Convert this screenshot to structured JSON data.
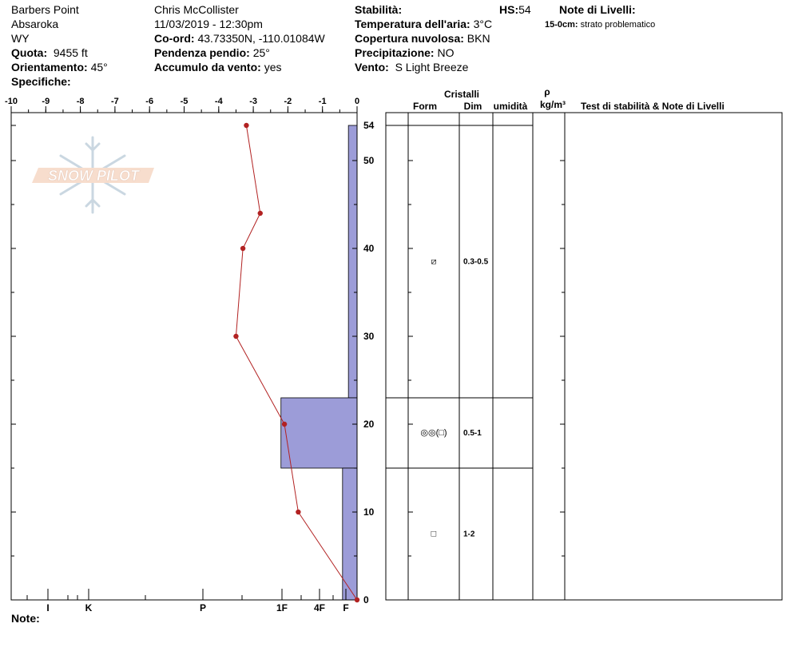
{
  "header": {
    "col1": {
      "location": "Barbers Point",
      "range": "Absaroka",
      "state": "WY",
      "elevation_label": "Quota:",
      "elevation": "9455 ft",
      "aspect_label": "Orientamento:",
      "aspect": "45°",
      "specifics_label": "Specifiche:"
    },
    "col2": {
      "observer": "Chris McCollister",
      "datetime": "11/03/2019 - 12:30pm",
      "coord_label": "Co-ord:",
      "coord": "43.73350N, -110.01084W",
      "slope_label": "Pendenza pendio:",
      "slope": "25°",
      "wind_loading_label": "Accumulo da vento:",
      "wind_loading": "yes"
    },
    "col3": {
      "stability_label": "Stabilità:",
      "hs_label": "HS:",
      "hs": "54",
      "air_temp_label": "Temperatura dell'aria:",
      "air_temp": "3°C",
      "cloud_label": "Copertura nuvolosa:",
      "cloud": "BKN",
      "precip_label": "Precipitazione:",
      "precip": "NO",
      "wind_label": "Vento:",
      "wind": "S Light Breeze"
    },
    "col4": {
      "layer_notes_label": "Note di Livelli:",
      "layer_note_range": "15-0cm:",
      "layer_note_text": "strato problematico"
    }
  },
  "footer": {
    "notes_label": "Note:"
  },
  "logo": {
    "text": "SNOW PILOT"
  },
  "table": {
    "crystals_header": "Cristalli",
    "form_header": "Form",
    "size_header": "Dim",
    "moisture_header": "umidità",
    "density_symbol": "ρ",
    "density_unit": "kg/m³",
    "notes_header": "Test di stabilità & Note di Livelli"
  },
  "colors": {
    "hardness_fill": "#9c9cd8",
    "temp_line": "#b22222"
  },
  "chart_data": {
    "type": "line",
    "temperature_axis": {
      "label": "",
      "range": [
        -10,
        0
      ],
      "ticks": [
        "-10",
        "-9",
        "-8",
        "-7",
        "-6",
        "-5",
        "-4",
        "-3",
        "-2",
        "-1",
        "0"
      ]
    },
    "depth_axis": {
      "range": [
        0,
        54
      ],
      "ticks": [
        "0",
        "10",
        "20",
        "30",
        "40",
        "50",
        "54"
      ]
    },
    "hardness_axis": {
      "ticks": [
        "I",
        "K",
        "P",
        "1F",
        "4F",
        "F"
      ]
    },
    "temperature_profile": [
      {
        "depth": 54,
        "temp": -3.2
      },
      {
        "depth": 44,
        "temp": -2.8
      },
      {
        "depth": 40,
        "temp": -3.3
      },
      {
        "depth": 30,
        "temp": -3.5
      },
      {
        "depth": 20,
        "temp": -2.1
      },
      {
        "depth": 10,
        "temp": -1.7
      },
      {
        "depth": 0,
        "temp": 0.0
      }
    ],
    "layers": [
      {
        "top": 54,
        "bottom": 23,
        "hardness": "F",
        "width_deg": 0.25,
        "form": "⧄",
        "size": "0.3-0.5"
      },
      {
        "top": 23,
        "bottom": 15,
        "hardness": "1F",
        "width_deg": 2.2,
        "form": "◎◎(□)",
        "size": "0.5-1"
      },
      {
        "top": 15,
        "bottom": 0,
        "hardness": "F",
        "width_deg": 0.42,
        "form": "□",
        "size": "1-2"
      }
    ]
  }
}
